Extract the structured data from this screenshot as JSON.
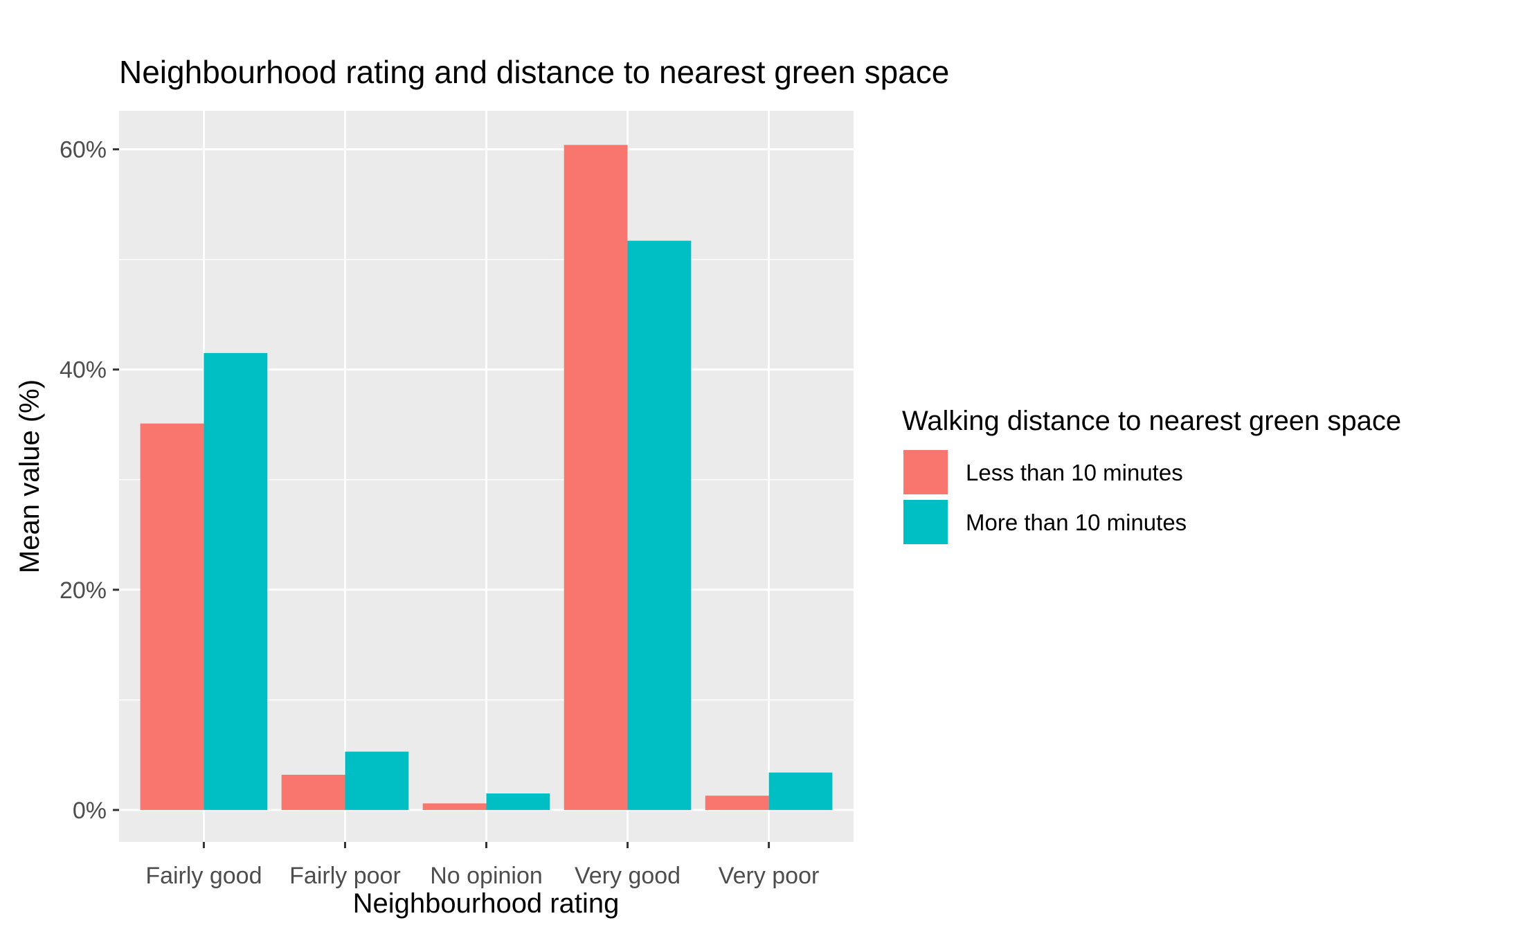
{
  "chart_data": {
    "type": "bar",
    "title": "Neighbourhood rating and distance to nearest green space",
    "xlabel": "Neighbourhood rating",
    "ylabel": "Mean value (%)",
    "categories": [
      "Fairly good",
      "Fairly poor",
      "No opinion",
      "Very good",
      "Very poor"
    ],
    "series": [
      {
        "name": "Less than 10 minutes",
        "color": "#F8766D",
        "values": [
          35.1,
          3.2,
          0.6,
          60.4,
          1.3
        ]
      },
      {
        "name": "More than 10 minutes",
        "color": "#00BFC4",
        "values": [
          41.5,
          5.3,
          1.5,
          51.7,
          3.4
        ]
      }
    ],
    "ylim": [
      -2.9,
      63.5
    ],
    "yticks": [
      0,
      20,
      40,
      60
    ],
    "ytick_labels": [
      "0%",
      "20%",
      "40%",
      "60%"
    ],
    "grid": true,
    "legend": {
      "title": "Walking distance to nearest green space",
      "position": "right"
    },
    "panel_background": "#EBEBEB"
  }
}
